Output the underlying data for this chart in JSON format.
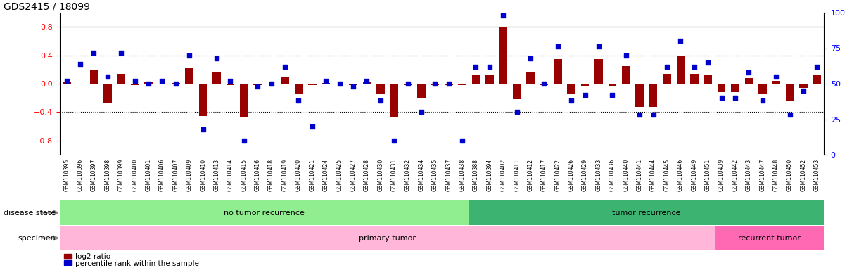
{
  "title": "GDS2415 / 18099",
  "samples": [
    "GSM110395",
    "GSM110396",
    "GSM110397",
    "GSM110398",
    "GSM110399",
    "GSM110400",
    "GSM110401",
    "GSM110406",
    "GSM110407",
    "GSM110409",
    "GSM110410",
    "GSM110413",
    "GSM110414",
    "GSM110415",
    "GSM110416",
    "GSM110418",
    "GSM110419",
    "GSM110420",
    "GSM110421",
    "GSM110424",
    "GSM110425",
    "GSM110427",
    "GSM110428",
    "GSM110430",
    "GSM110431",
    "GSM110432",
    "GSM110434",
    "GSM110435",
    "GSM110437",
    "GSM110438",
    "GSM110388",
    "GSM110394",
    "GSM110402",
    "GSM110411",
    "GSM110412",
    "GSM110417",
    "GSM110422",
    "GSM110426",
    "GSM110429",
    "GSM110433",
    "GSM110436",
    "GSM110440",
    "GSM110441",
    "GSM110444",
    "GSM110445",
    "GSM110446",
    "GSM110449",
    "GSM110451",
    "GSM110439",
    "GSM110442",
    "GSM110443",
    "GSM110447",
    "GSM110448",
    "GSM110450",
    "GSM110452",
    "GSM110453"
  ],
  "log2_ratio": [
    0.02,
    -0.01,
    0.19,
    -0.28,
    0.14,
    -0.02,
    0.03,
    -0.01,
    0.01,
    0.22,
    -0.46,
    0.16,
    -0.02,
    -0.48,
    -0.02,
    -0.01,
    0.1,
    -0.14,
    -0.02,
    0.01,
    -0.01,
    -0.02,
    0.02,
    -0.14,
    -0.48,
    -0.02,
    -0.21,
    -0.02,
    -0.02,
    -0.02,
    0.12,
    0.12,
    0.8,
    -0.22,
    0.16,
    -0.02,
    0.35,
    -0.14,
    -0.04,
    0.35,
    -0.04,
    0.25,
    -0.33,
    -0.33,
    0.14,
    0.4,
    0.14,
    0.12,
    -0.12,
    -0.12,
    0.08,
    -0.14,
    0.04,
    -0.25,
    -0.06,
    0.12
  ],
  "percentile": [
    52,
    64,
    72,
    55,
    72,
    52,
    50,
    52,
    50,
    70,
    18,
    68,
    52,
    10,
    48,
    50,
    62,
    38,
    20,
    52,
    50,
    48,
    52,
    38,
    10,
    50,
    30,
    50,
    50,
    10,
    62,
    62,
    98,
    30,
    68,
    50,
    76,
    38,
    42,
    76,
    42,
    70,
    28,
    28,
    62,
    80,
    62,
    65,
    40,
    40,
    58,
    38,
    55,
    28,
    45,
    62
  ],
  "no_tumor_count": 30,
  "tumor_count": 26,
  "primary_count": 48,
  "recurrent_count": 8,
  "bar_color": "#990000",
  "dot_color": "#0000CC",
  "ylim": [
    -1.0,
    1.0
  ],
  "yticks_left": [
    -0.8,
    -0.4,
    0.0,
    0.4,
    0.8
  ],
  "right_yticks": [
    0,
    25,
    50,
    75,
    100
  ],
  "dotted_lines": [
    -0.4,
    0.4
  ],
  "disease_state_label": "disease state",
  "specimen_label": "specimen",
  "legend_bar_label": "log2 ratio",
  "legend_dot_label": "percentile rank within the sample",
  "no_tumor_label": "no tumor recurrence",
  "tumor_label": "tumor recurrence",
  "primary_label": "primary tumor",
  "recurrent_label": "recurrent tumor",
  "bg_no_tumor": "#90EE90",
  "bg_tumor": "#3CB371",
  "bg_primary": "#FFB6D9",
  "bg_recurrent": "#FF69B4"
}
